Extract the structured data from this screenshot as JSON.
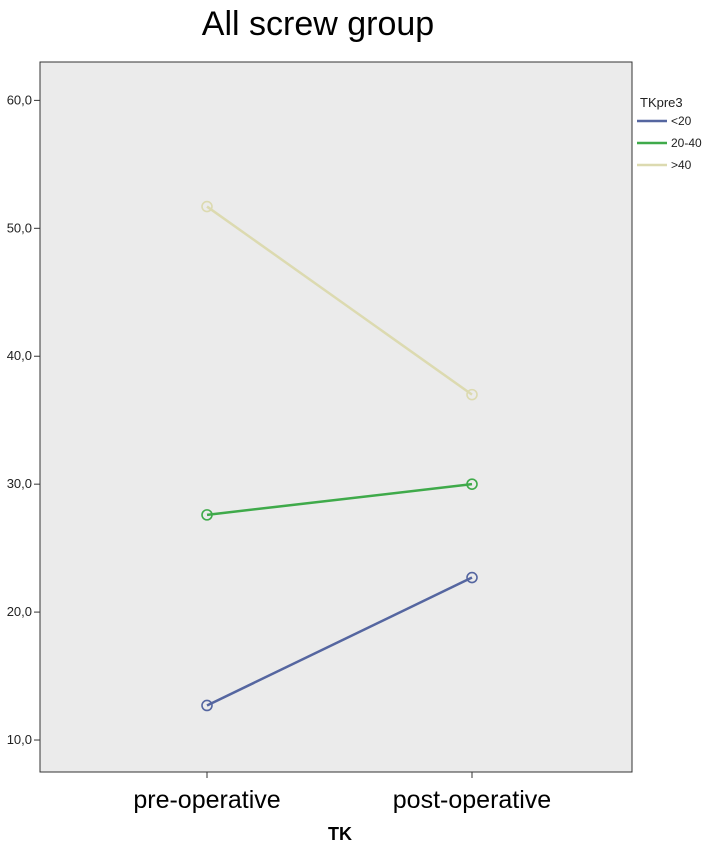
{
  "chart_data": {
    "type": "line",
    "title": "All screw group",
    "xlabel": "TK",
    "ylabel": "",
    "categories": [
      "pre-operative",
      "post-operative"
    ],
    "ylim": [
      7.5,
      63.0
    ],
    "yticks": [
      "10,0",
      "20,0",
      "30,0",
      "40,0",
      "50,0",
      "60,0"
    ],
    "ytick_values": [
      10,
      20,
      30,
      40,
      50,
      60
    ],
    "grid": false,
    "legend": {
      "title": "TKpre3",
      "placement": "top-right"
    },
    "series": [
      {
        "name": "<20",
        "values": [
          12.7,
          22.7
        ],
        "color": "#5566a0"
      },
      {
        "name": "20-40",
        "values": [
          27.6,
          30.0
        ],
        "color": "#3faa4a"
      },
      {
        "name": ">40",
        "values": [
          51.7,
          37.0
        ],
        "color": "#dcdab0"
      }
    ],
    "plot_background": "#ebebeb"
  }
}
